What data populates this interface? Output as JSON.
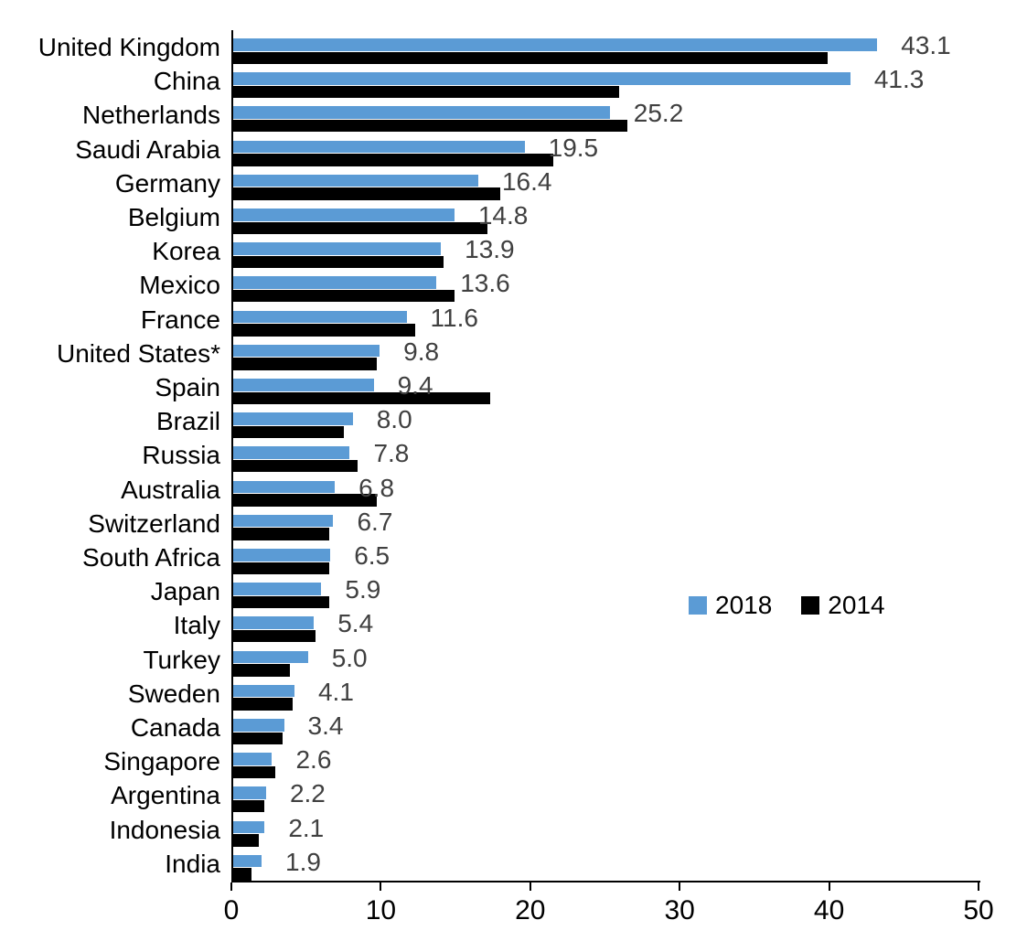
{
  "chart_data": {
    "type": "bar",
    "orientation": "horizontal",
    "title": "",
    "xlabel": "",
    "ylabel": "",
    "xlim": [
      0,
      50
    ],
    "xticks": [
      "0",
      "10",
      "20",
      "30",
      "40",
      "50"
    ],
    "grid": false,
    "legend_position": "middle-right",
    "categories": [
      "United Kingdom",
      "China",
      "Netherlands",
      "Saudi Arabia",
      "Germany",
      "Belgium",
      "Korea",
      "Mexico",
      "France",
      "United States*",
      "Spain",
      "Brazil",
      "Russia",
      "Australia",
      "Switzerland",
      "South Africa",
      "Japan",
      "Italy",
      "Turkey",
      "Sweden",
      "Canada",
      "Singapore",
      "Argentina",
      "Indonesia",
      "India"
    ],
    "series": [
      {
        "name": "2018",
        "color": "#5B9BD5",
        "values": [
          43.1,
          41.3,
          25.2,
          19.5,
          16.4,
          14.8,
          13.9,
          13.6,
          11.6,
          9.8,
          9.4,
          8.0,
          7.8,
          6.8,
          6.7,
          6.5,
          5.9,
          5.4,
          5.0,
          4.1,
          3.4,
          2.6,
          2.2,
          2.1,
          1.9
        ],
        "labels": [
          "43.1",
          "41.3",
          "25.2",
          "19.5",
          "16.4",
          "14.8",
          "13.9",
          "13.6",
          "11.6",
          "9.8",
          "9.4",
          "8.0",
          "7.8",
          "6.8",
          "6.7",
          "6.5",
          "5.9",
          "5.4",
          "5.0",
          "4.1",
          "3.4",
          "2.6",
          "2.2",
          "2.1",
          "1.9"
        ]
      },
      {
        "name": "2014",
        "color": "#000000",
        "values": [
          39.8,
          25.8,
          26.4,
          21.4,
          17.9,
          17.0,
          14.1,
          14.8,
          12.2,
          9.6,
          17.2,
          7.4,
          8.3,
          9.6,
          6.4,
          6.4,
          6.4,
          5.5,
          3.8,
          4.0,
          3.3,
          2.8,
          2.1,
          1.7,
          1.2
        ]
      }
    ],
    "value_label_color": "#404040",
    "axis_color": "#000000"
  }
}
